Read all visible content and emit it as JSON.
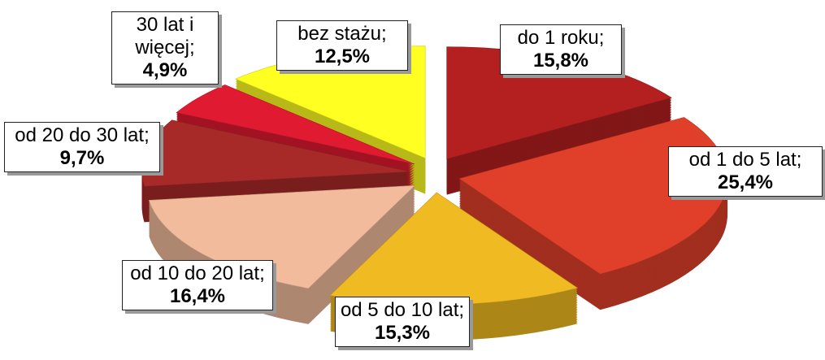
{
  "chart_data": {
    "type": "pie3d",
    "categories": [
      "do 1 roku;",
      "od 1 do 5 lat;",
      "od 5 do 10 lat;",
      "od 10 do 20 lat;",
      "od 20 do 30 lat;",
      "30 lat i więcej;",
      "bez stażu;"
    ],
    "values": [
      15.8,
      25.4,
      15.3,
      16.4,
      9.7,
      4.9,
      12.5
    ],
    "value_labels": [
      "15,8%",
      "25,4%",
      "15,3%",
      "16,4%",
      "9,7%",
      "4,9%",
      "12,5%"
    ],
    "colors": [
      "#b42020",
      "#e0402a",
      "#f0ba22",
      "#f2bc9c",
      "#a82a28",
      "#e01a30",
      "#ffff22"
    ]
  }
}
